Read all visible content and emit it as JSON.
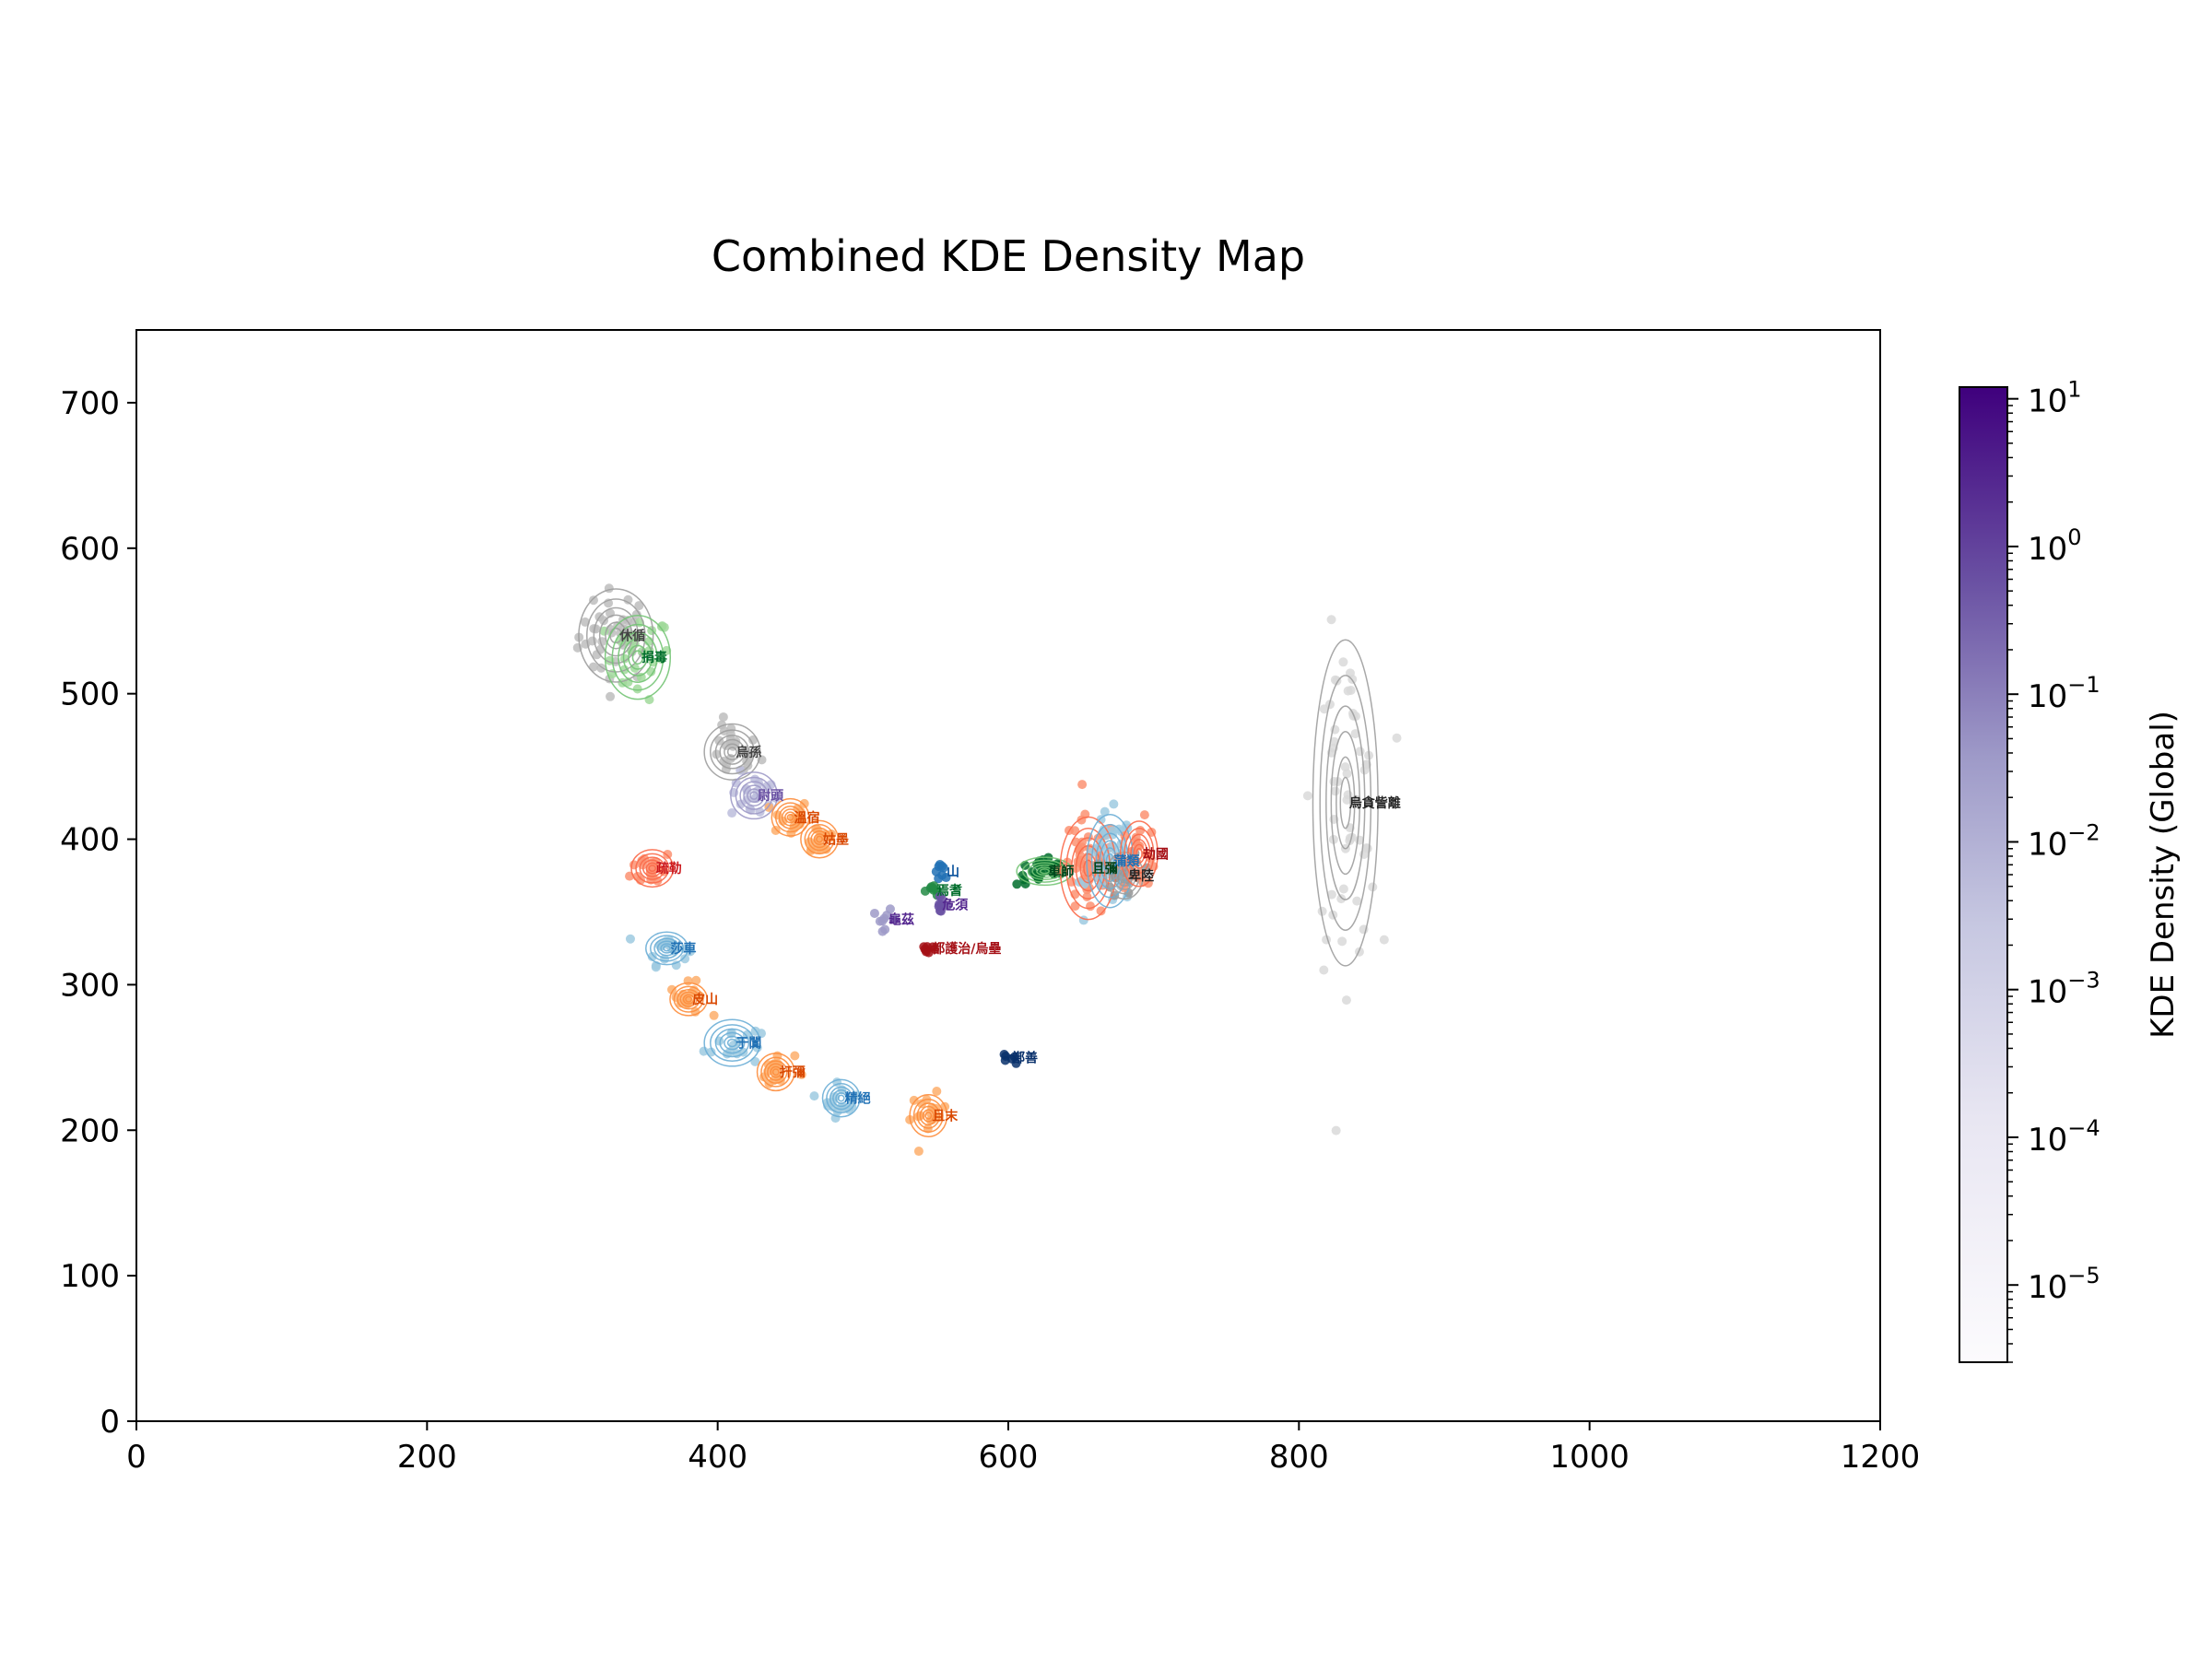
{
  "chart_data": {
    "type": "scatter",
    "title": "Combined KDE Density Map",
    "xlabel": "",
    "ylabel": "",
    "xlim": [
      0,
      1200
    ],
    "ylim": [
      0,
      750
    ],
    "x_ticks": [
      0,
      200,
      400,
      600,
      800,
      1000,
      1200
    ],
    "y_ticks": [
      0,
      100,
      200,
      300,
      400,
      500,
      600,
      700
    ],
    "grid": false,
    "colorbar": {
      "label": "KDE Density (Global)",
      "scale": "log",
      "range": [
        3e-06,
        12
      ],
      "tick_labels": [
        {
          "base": "10",
          "exp": "1",
          "value": 10
        },
        {
          "base": "10",
          "exp": "0",
          "value": 1
        },
        {
          "base": "10",
          "exp": "−1",
          "value": 0.1
        },
        {
          "base": "10",
          "exp": "−2",
          "value": 0.01
        },
        {
          "base": "10",
          "exp": "−3",
          "value": 0.001
        },
        {
          "base": "10",
          "exp": "−4",
          "value": 0.0001
        },
        {
          "base": "10",
          "exp": "−5",
          "value": 1e-05
        }
      ],
      "color_low": "#fcfbfd",
      "color_high": "#3f007d"
    },
    "clusters": [
      {
        "label": "休循",
        "x": 330,
        "y": 540,
        "color": "#444444",
        "point_color": "#bdbdbd",
        "contour": "#9e9e9e",
        "spread": [
          16,
          20
        ],
        "n": 40
      },
      {
        "label": "捐毒",
        "x": 345,
        "y": 525,
        "color": "#006d2c",
        "point_color": "#a1d99b",
        "contour": "#74c476",
        "spread": [
          14,
          18
        ],
        "n": 30
      },
      {
        "label": "烏孫",
        "x": 410,
        "y": 460,
        "color": "#444444",
        "point_color": "#bdbdbd",
        "contour": "#9e9e9e",
        "spread": [
          12,
          12
        ],
        "n": 25
      },
      {
        "label": "尉頭",
        "x": 425,
        "y": 430,
        "color": "#6a51a3",
        "point_color": "#bcbddc",
        "contour": "#9e9ac8",
        "spread": [
          10,
          10
        ],
        "n": 20
      },
      {
        "label": "溫宿",
        "x": 450,
        "y": 415,
        "color": "#d94801",
        "point_color": "#fdae6b",
        "contour": "#fd8d3c",
        "spread": [
          8,
          8
        ],
        "n": 18
      },
      {
        "label": "姑墨",
        "x": 470,
        "y": 400,
        "color": "#d94801",
        "point_color": "#fdae6b",
        "contour": "#fd8d3c",
        "spread": [
          8,
          8
        ],
        "n": 18
      },
      {
        "label": "疏勒",
        "x": 355,
        "y": 380,
        "color": "#cb181d",
        "point_color": "#fc9272",
        "contour": "#fb6a4a",
        "spread": [
          9,
          8
        ],
        "n": 20
      },
      {
        "label": "莎車",
        "x": 365,
        "y": 325,
        "color": "#2171b5",
        "point_color": "#9ecae1",
        "contour": "#6baed6",
        "spread": [
          9,
          7
        ],
        "n": 20
      },
      {
        "label": "皮山",
        "x": 380,
        "y": 290,
        "color": "#d94801",
        "point_color": "#fdae6b",
        "contour": "#fd8d3c",
        "spread": [
          8,
          7
        ],
        "n": 16
      },
      {
        "label": "于闐",
        "x": 410,
        "y": 260,
        "color": "#2171b5",
        "point_color": "#9ecae1",
        "contour": "#6baed6",
        "spread": [
          12,
          10
        ],
        "n": 16
      },
      {
        "label": "扞彌",
        "x": 440,
        "y": 240,
        "color": "#d94801",
        "point_color": "#fdae6b",
        "contour": "#fd8d3c",
        "spread": [
          8,
          8
        ],
        "n": 16
      },
      {
        "label": "精絕",
        "x": 485,
        "y": 222,
        "color": "#2171b5",
        "point_color": "#9ecae1",
        "contour": "#6baed6",
        "spread": [
          8,
          8
        ],
        "n": 16
      },
      {
        "label": "且末",
        "x": 545,
        "y": 210,
        "color": "#d94801",
        "point_color": "#fdae6b",
        "contour": "#fd8d3c",
        "spread": [
          8,
          9
        ],
        "n": 16
      },
      {
        "label": "都護治/烏壘",
        "x": 545,
        "y": 325,
        "color": "#a50f15",
        "point_color": "#a50f15",
        "contour": "",
        "spread": [
          4,
          3
        ],
        "n": 8
      },
      {
        "label": "龜茲",
        "x": 515,
        "y": 345,
        "color": "#54278f",
        "point_color": "#9e9ac8",
        "contour": "",
        "spread": [
          5,
          4
        ],
        "n": 10
      },
      {
        "label": "山",
        "x": 555,
        "y": 378,
        "color": "#08519c",
        "point_color": "#2171b5",
        "contour": "",
        "spread": [
          4,
          3
        ],
        "n": 8
      },
      {
        "label": "焉耆",
        "x": 548,
        "y": 365,
        "color": "#006d2c",
        "point_color": "#238b45",
        "contour": "",
        "spread": [
          4,
          3
        ],
        "n": 8
      },
      {
        "label": "危須",
        "x": 552,
        "y": 355,
        "color": "#54278f",
        "point_color": "#6a51a3",
        "contour": "",
        "spread": [
          4,
          3
        ],
        "n": 8
      },
      {
        "label": "鄯善",
        "x": 600,
        "y": 250,
        "color": "#08306b",
        "point_color": "#08306b",
        "contour": "",
        "spread": [
          3,
          2
        ],
        "n": 6
      },
      {
        "label": "車師",
        "x": 625,
        "y": 378,
        "color": "#00441b",
        "point_color": "#006d2c",
        "contour": "#74c476",
        "spread": [
          12,
          6
        ],
        "n": 30
      },
      {
        "label": "且彌",
        "x": 655,
        "y": 380,
        "color": "#00441b",
        "point_color": "#fc9272",
        "contour": "#fb6a4a",
        "spread": [
          12,
          22
        ],
        "n": 60
      },
      {
        "label": "蒲類",
        "x": 670,
        "y": 385,
        "color": "#2171b5",
        "point_color": "#9ecae1",
        "contour": "#6baed6",
        "spread": [
          10,
          20
        ],
        "n": 40
      },
      {
        "label": "卑陸",
        "x": 680,
        "y": 375,
        "color": "#252525",
        "point_color": "#969696",
        "contour": "#9e9e9e",
        "spread": [
          8,
          10
        ],
        "n": 20
      },
      {
        "label": "劫國",
        "x": 690,
        "y": 390,
        "color": "#a50f15",
        "point_color": "#fc9272",
        "contour": "#fb6a4a",
        "spread": [
          8,
          14
        ],
        "n": 30
      },
      {
        "label": "烏貪訾離",
        "x": 832,
        "y": 425,
        "color": "#252525",
        "point_color": "#d9d9d9",
        "contour": "#9e9e9e",
        "spread": [
          14,
          70
        ],
        "n": 60
      }
    ]
  }
}
